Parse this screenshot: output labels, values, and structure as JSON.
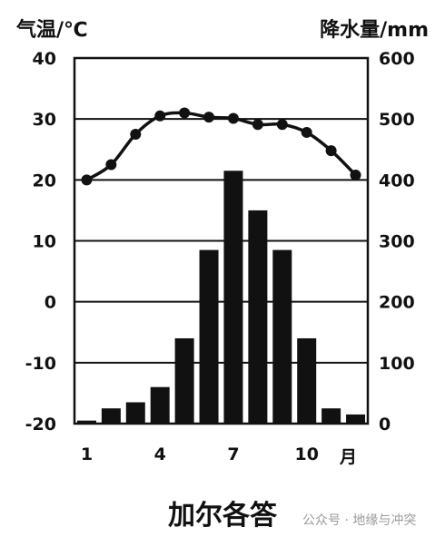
{
  "chart_data": {
    "type": "bar",
    "location_label": "加尔各答",
    "left_axis_label": "气温/℃",
    "right_axis_label": "降水量/mm",
    "month_unit": "月",
    "x_tick_labels": [
      "1",
      "4",
      "7",
      "10"
    ],
    "months": [
      1,
      2,
      3,
      4,
      5,
      6,
      7,
      8,
      9,
      10,
      11,
      12
    ],
    "temp_ticks": [
      40,
      30,
      20,
      10,
      0,
      -10,
      -20
    ],
    "temp_tick_labels": [
      "40",
      "30",
      "20",
      "10",
      "0",
      "-10",
      "-20"
    ],
    "precip_ticks": [
      600,
      500,
      400,
      300,
      200,
      100,
      0
    ],
    "temp_range": [
      -20,
      40
    ],
    "precip_range": [
      0,
      600
    ],
    "grid": true,
    "series": [
      {
        "chart": "line",
        "axis": "left",
        "values": [
          20,
          22.5,
          27.5,
          30.5,
          31,
          30.3,
          30.1,
          29.1,
          29.1,
          27.8,
          24.8,
          20.8
        ]
      },
      {
        "chart": "bar",
        "axis": "right",
        "values": [
          5,
          25,
          35,
          60,
          140,
          285,
          415,
          350,
          285,
          140,
          25,
          15
        ]
      }
    ],
    "colors": {
      "ink": "#111111",
      "background": "#ffffff"
    }
  },
  "watermark": "公众号 · 地缘与冲突"
}
